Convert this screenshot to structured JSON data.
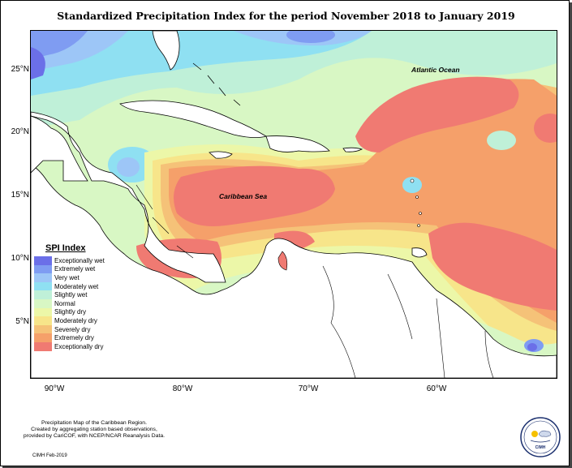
{
  "title": "Standardized Precipitation Index for the period November 2018 to January 2019",
  "axes": {
    "y_ticks": [
      "25°N",
      "20°N",
      "15°N",
      "10°N",
      "5°N"
    ],
    "x_ticks": [
      "90°W",
      "80°W",
      "70°W",
      "60°W"
    ]
  },
  "labels": {
    "atlantic": "Atlantic Ocean",
    "caribbean": "Caribbean Sea"
  },
  "legend": {
    "title": "SPI Index",
    "items": [
      {
        "label": "Exceptionally wet",
        "color": "#6b6fe8"
      },
      {
        "label": "Extremely wet",
        "color": "#7f9cf2"
      },
      {
        "label": "Very wet",
        "color": "#9dc6f7"
      },
      {
        "label": "Moderately wet",
        "color": "#8fe0f2"
      },
      {
        "label": "Slightly wet",
        "color": "#bff0d8"
      },
      {
        "label": "Normal",
        "color": "#d8f7c4"
      },
      {
        "label": "Slightly dry",
        "color": "#ecf7a8"
      },
      {
        "label": "Moderately dry",
        "color": "#f7e58a"
      },
      {
        "label": "Severely dry",
        "color": "#f5c278"
      },
      {
        "label": "Extremely dry",
        "color": "#f5a06a"
      },
      {
        "label": "Exceptionally dry",
        "color": "#f07a72"
      }
    ]
  },
  "footnote": {
    "line1": "Precipitation Map of the Caribbean Region.",
    "line2": "Created by aggregating station based observations,",
    "line3": "provided by CariCOF, with NCEP/NCAR Reanalysis Data."
  },
  "credit": "CIMH Feb-2019",
  "logo": {
    "text": "CIMH"
  }
}
